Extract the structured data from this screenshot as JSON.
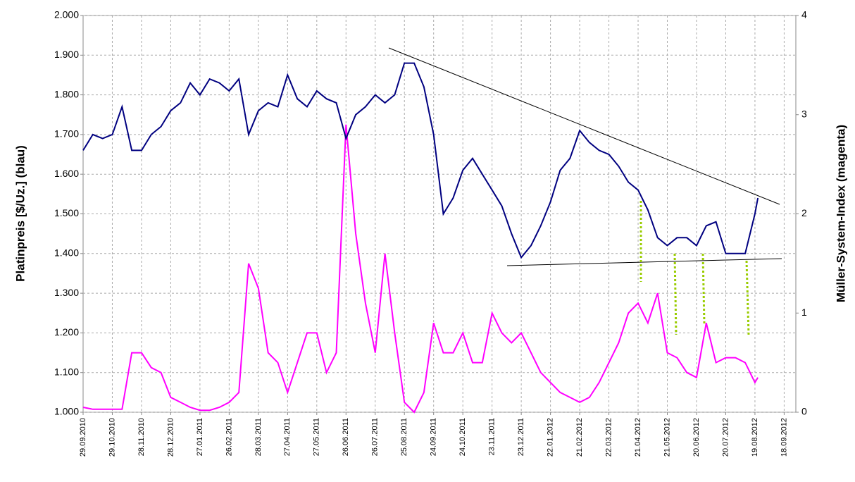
{
  "chart_data": {
    "type": "line",
    "ylabel": "Platinpreis [$/Uz.] (blau)",
    "y2label": "Müller-System-Index (magenta)",
    "xlim": [
      "29.09.2010",
      "30.09.2012"
    ],
    "xticks": [
      "29.09.2010",
      "29.10.2010",
      "28.11.2010",
      "28.12.2010",
      "27.01.2011",
      "26.02.2011",
      "28.03.2011",
      "27.04.2011",
      "27.05.2011",
      "26.06.2011",
      "26.07.2011",
      "25.08.2011",
      "24.09.2011",
      "24.10.2011",
      "23.11.2011",
      "23.12.2011",
      "22.01.2012",
      "21.02.2012",
      "22.03.2012",
      "21.04.2012",
      "21.05.2012",
      "20.06.2012",
      "20.07.2012",
      "19.08.2012",
      "18.09.2012"
    ],
    "ylim": [
      1000,
      2000
    ],
    "yticks": [
      {
        "value": 1000,
        "label": "1.000"
      },
      {
        "value": 1100,
        "label": "1.100"
      },
      {
        "value": 1200,
        "label": "1.200"
      },
      {
        "value": 1300,
        "label": "1.300"
      },
      {
        "value": 1400,
        "label": "1.400"
      },
      {
        "value": 1500,
        "label": "1.500"
      },
      {
        "value": 1600,
        "label": "1.600"
      },
      {
        "value": 1700,
        "label": "1.700"
      },
      {
        "value": 1800,
        "label": "1.800"
      },
      {
        "value": 1900,
        "label": "1.900"
      },
      {
        "value": 2000,
        "label": "2.000"
      }
    ],
    "y2lim": [
      0,
      4
    ],
    "y2ticks": [
      0,
      1,
      2,
      3,
      4
    ],
    "grid": true,
    "x": [
      "29.09.2010",
      "09.10.2010",
      "19.10.2010",
      "29.10.2010",
      "08.11.2010",
      "18.11.2010",
      "28.11.2010",
      "08.12.2010",
      "18.12.2010",
      "28.12.2010",
      "07.01.2011",
      "17.01.2011",
      "27.01.2011",
      "06.02.2011",
      "16.02.2011",
      "26.02.2011",
      "08.03.2011",
      "18.03.2011",
      "28.03.2011",
      "07.04.2011",
      "17.04.2011",
      "27.04.2011",
      "07.05.2011",
      "17.05.2011",
      "27.05.2011",
      "06.06.2011",
      "16.06.2011",
      "26.06.2011",
      "06.07.2011",
      "16.07.2011",
      "26.07.2011",
      "05.08.2011",
      "15.08.2011",
      "25.08.2011",
      "04.09.2011",
      "14.09.2011",
      "24.09.2011",
      "04.10.2011",
      "14.10.2011",
      "24.10.2011",
      "03.11.2011",
      "13.11.2011",
      "23.11.2011",
      "03.12.2011",
      "13.12.2011",
      "23.12.2011",
      "02.01.2012",
      "12.01.2012",
      "22.01.2012",
      "01.02.2012",
      "11.02.2012",
      "21.02.2012",
      "02.03.2012",
      "12.03.2012",
      "22.03.2012",
      "01.04.2012",
      "11.04.2012",
      "21.04.2012",
      "01.05.2012",
      "11.05.2012",
      "21.05.2012",
      "31.05.2012",
      "10.06.2012",
      "20.06.2012",
      "30.06.2012",
      "10.07.2012",
      "20.07.2012",
      "30.07.2012",
      "09.08.2012",
      "19.08.2012",
      "22.08.2012"
    ],
    "series": [
      {
        "color": "#000080",
        "values": [
          1660,
          1700,
          1690,
          1700,
          1770,
          1660,
          1660,
          1700,
          1720,
          1760,
          1780,
          1830,
          1800,
          1840,
          1830,
          1810,
          1840,
          1700,
          1760,
          1780,
          1770,
          1850,
          1790,
          1770,
          1810,
          1790,
          1780,
          1690,
          1750,
          1770,
          1800,
          1780,
          1800,
          1880,
          1880,
          1820,
          1700,
          1500,
          1540,
          1610,
          1640,
          1600,
          1560,
          1520,
          1450,
          1390,
          1420,
          1470,
          1530,
          1610,
          1640,
          1710,
          1680,
          1660,
          1650,
          1620,
          1580,
          1560,
          1510,
          1440,
          1420,
          1440,
          1440,
          1420,
          1470,
          1480,
          1400,
          1400,
          1400,
          1500,
          1540
        ]
      },
      {
        "color": "#ff00ff",
        "axis": "y2",
        "values": [
          0.05,
          0.03,
          0.03,
          0.03,
          0.03,
          0.6,
          0.6,
          0.45,
          0.4,
          0.15,
          0.1,
          0.05,
          0.02,
          0.02,
          0.05,
          0.1,
          0.2,
          1.5,
          1.25,
          0.6,
          0.5,
          0.2,
          0.5,
          0.8,
          0.8,
          0.4,
          0.6,
          2.9,
          1.8,
          1.1,
          0.6,
          1.6,
          0.8,
          0.1,
          0.0,
          0.2,
          0.9,
          0.6,
          0.6,
          0.8,
          0.5,
          0.5,
          1.0,
          0.8,
          0.7,
          0.8,
          0.6,
          0.4,
          0.3,
          0.2,
          0.15,
          0.1,
          0.15,
          0.3,
          0.5,
          0.7,
          1.0,
          1.1,
          0.9,
          1.2,
          0.6,
          0.55,
          0.4,
          0.35,
          0.9,
          0.5,
          0.55,
          0.55,
          0.5,
          0.3,
          0.35
        ]
      }
    ]
  }
}
